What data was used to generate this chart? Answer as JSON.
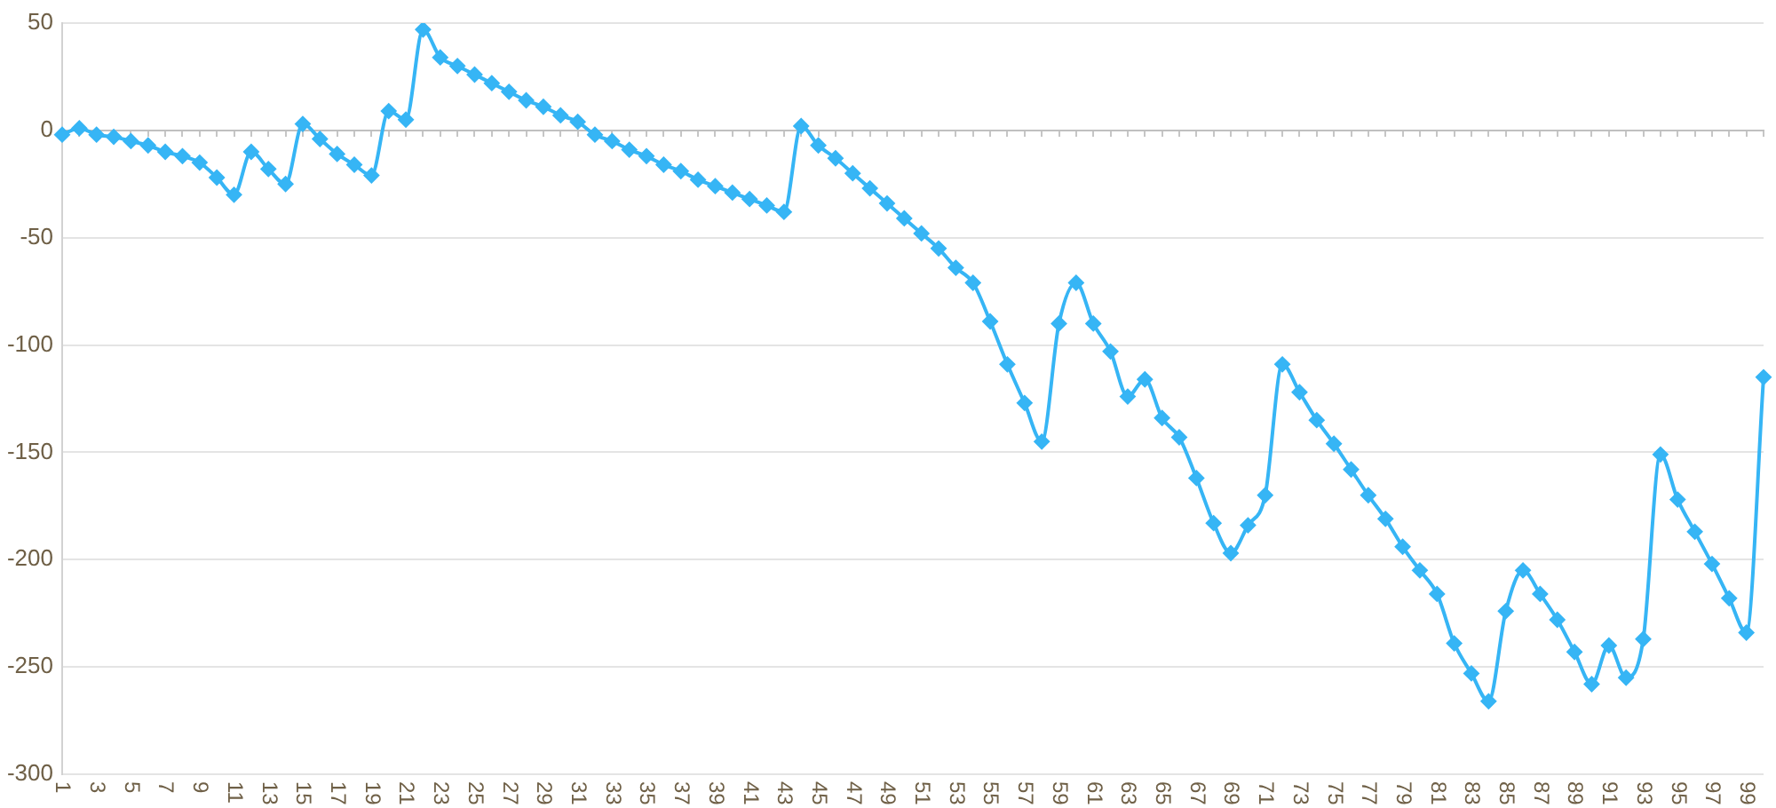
{
  "chart_data": {
    "type": "line",
    "categories": [
      "1",
      null,
      "3",
      null,
      "5",
      null,
      "7",
      null,
      "9",
      null,
      "11",
      null,
      "13",
      null,
      "15",
      null,
      "17",
      null,
      "19",
      null,
      "21",
      null,
      "23",
      null,
      "25",
      null,
      "27",
      null,
      "29",
      null,
      "31",
      null,
      "33",
      null,
      "35",
      null,
      "37",
      null,
      "39",
      null,
      "41",
      null,
      "43",
      null,
      "45",
      null,
      "47",
      null,
      "49",
      null,
      "51",
      null,
      "53",
      null,
      "55",
      null,
      "57",
      null,
      "59",
      null,
      "61",
      null,
      "63",
      null,
      "65",
      null,
      "67",
      null,
      "69",
      null,
      "71",
      null,
      "73",
      null,
      "75",
      null,
      "77",
      null,
      "79",
      null,
      "81",
      null,
      "83",
      null,
      "85",
      null,
      "87",
      null,
      "89",
      null,
      "91",
      null,
      "93",
      null,
      "95",
      null,
      "97",
      null,
      "99",
      null
    ],
    "series": [
      {
        "color": "#36b5f5",
        "values": [
          -2,
          1,
          -2,
          -3,
          -5,
          -7,
          -10,
          -12,
          -15,
          -22,
          -30,
          -10,
          -18,
          -25,
          3,
          -4,
          -11,
          -16,
          -21,
          9,
          5,
          47,
          34,
          30,
          26,
          22,
          18,
          14,
          11,
          7,
          4,
          -2,
          -5,
          -9,
          -12,
          -16,
          -19,
          -23,
          -26,
          -29,
          -32,
          -35,
          -38,
          2,
          -7,
          -13,
          -20,
          -27,
          -34,
          -41,
          -48,
          -55,
          -64,
          -71,
          -89,
          -109,
          -127,
          -145,
          -90,
          -71,
          -90,
          -103,
          -124,
          -116,
          -134,
          -143,
          -162,
          -183,
          -197,
          -184,
          -170,
          -109,
          -122,
          -135,
          -146,
          -158,
          -170,
          -181,
          -194,
          -205,
          -216,
          -239,
          -253,
          -266,
          -224,
          -205,
          -216,
          -228,
          -243,
          -258,
          -240,
          -255,
          -237,
          -151,
          -172,
          -187,
          -202,
          -218,
          -234,
          -115
        ]
      }
    ],
    "ylim": [
      -300,
      50
    ],
    "yticks": [
      -300,
      -250,
      -200,
      -150,
      -100,
      -50,
      0,
      50
    ],
    "grid": "y",
    "marker": "diamond"
  }
}
